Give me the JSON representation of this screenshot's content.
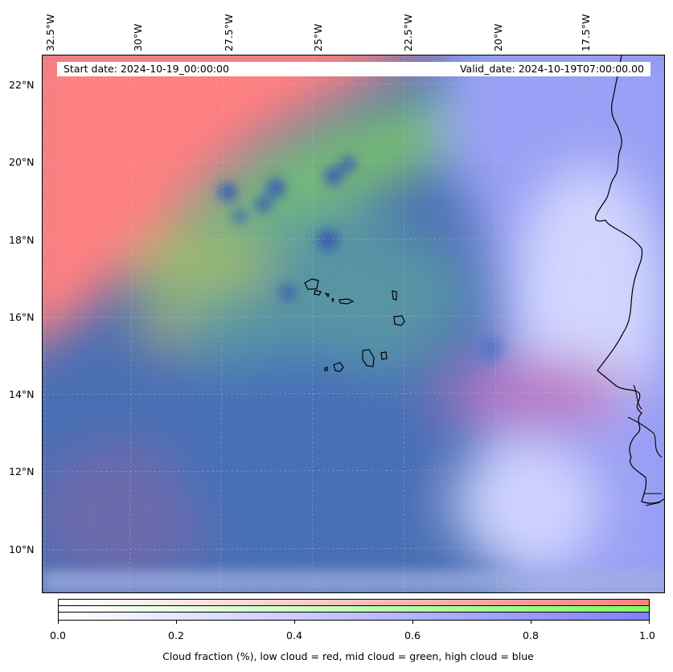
{
  "map": {
    "lon_labels": [
      "32.5°W",
      "30°W",
      "27.5°W",
      "25°W",
      "22.5°W",
      "20°W",
      "17.5°W"
    ],
    "lat_labels": [
      "22°N",
      "20°N",
      "18°N",
      "16°N",
      "14°N",
      "12°N",
      "10°N"
    ],
    "start_date": "Start date: 2024-10-19_00:00:00",
    "valid_date": "Valid_date: 2024-10-19T07:00:00.00",
    "colors": {
      "low_cloud": "#ff8080",
      "mid_cloud": "#80ff60",
      "high_cloud": "#8080ff",
      "ocean_clear": "#4a6fb5"
    }
  },
  "colorbar": {
    "ticks": [
      "0.0",
      "0.2",
      "0.4",
      "0.6",
      "0.8",
      "1.0"
    ],
    "label": "Cloud fraction (%), low cloud = red, mid cloud = green, high cloud = blue"
  }
}
